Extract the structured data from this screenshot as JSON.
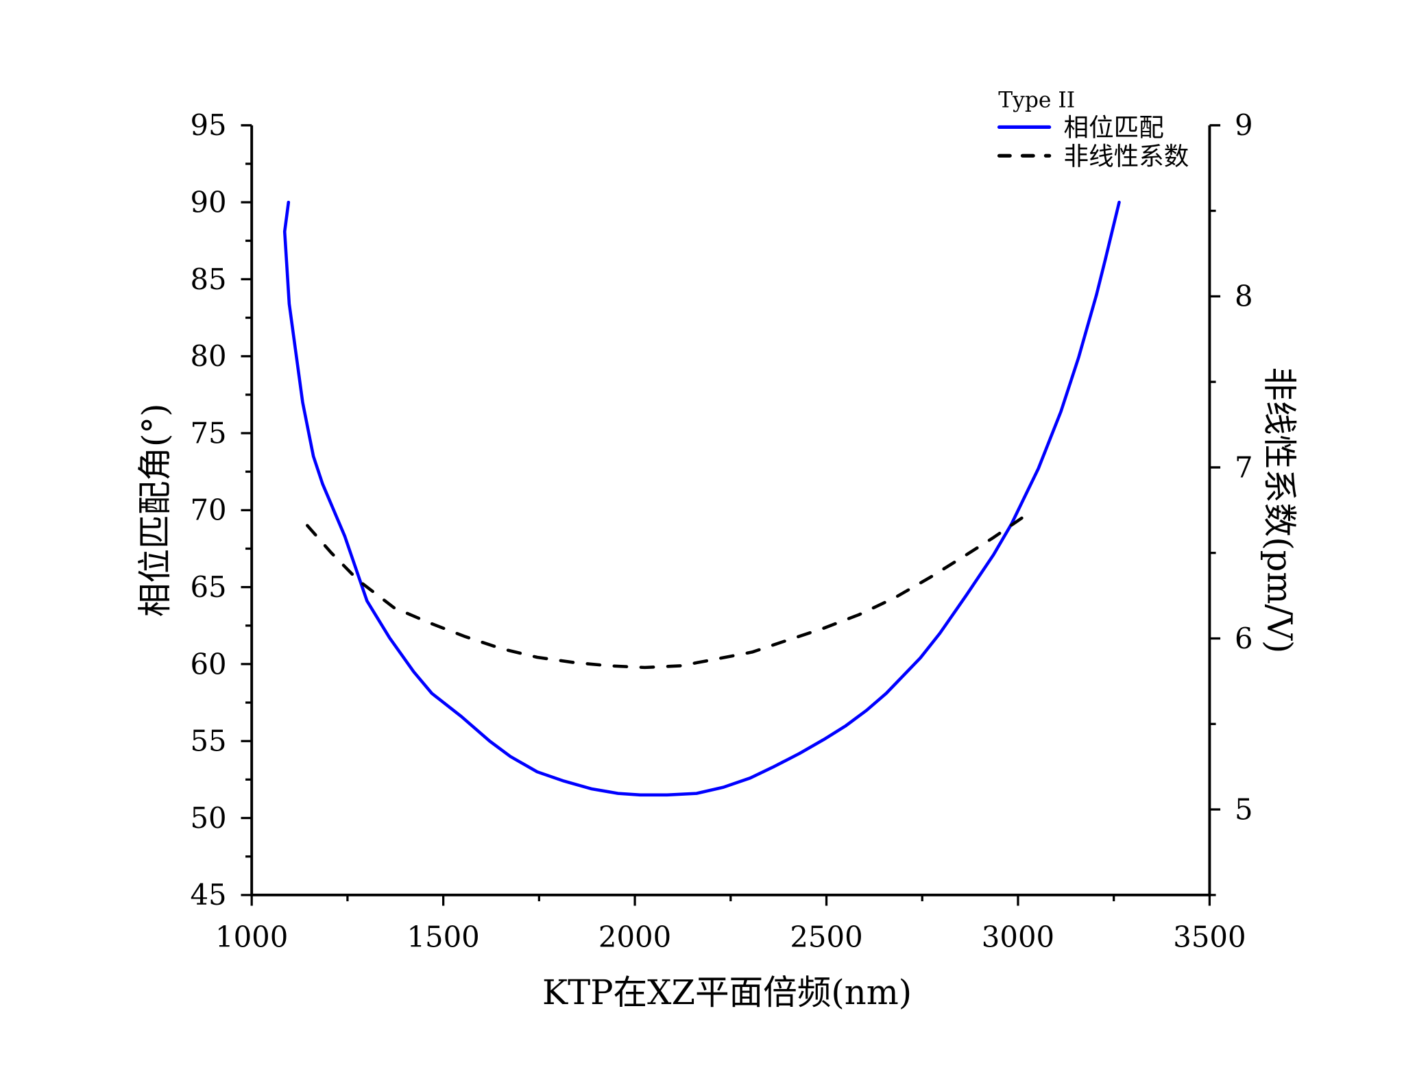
{
  "chart_data": {
    "type": "line",
    "title": "",
    "xlabel": "KTP在XZ平面倍频(nm)",
    "ylabel": "相位匹配角(°)",
    "y2label": "非线性系数(pm/V)",
    "xlim": [
      1000,
      3500
    ],
    "ylim": [
      45,
      95
    ],
    "y2lim": [
      4.5,
      9
    ],
    "xticks": [
      "1000",
      "1500",
      "2000",
      "2500",
      "3000",
      "3500"
    ],
    "yticks": [
      "45",
      "50",
      "55",
      "60",
      "65",
      "70",
      "75",
      "80",
      "85",
      "90",
      "95"
    ],
    "y2ticks": [
      "5",
      "6",
      "7",
      "8",
      "9"
    ],
    "grid": false,
    "legend": {
      "title": "Type II",
      "placement": "top-right"
    },
    "series": [
      {
        "name": "相位匹配",
        "axis": "left",
        "color": "#0000ff",
        "style": "solid",
        "x": [
          1096,
          1086,
          1098,
          1133,
          1161,
          1185,
          1243,
          1301,
          1360,
          1423,
          1470,
          1547,
          1621,
          1675,
          1745,
          1815,
          1886,
          1956,
          2014,
          2084,
          2161,
          2231,
          2301,
          2360,
          2430,
          2493,
          2551,
          2605,
          2656,
          2745,
          2796,
          2866,
          2936,
          2983,
          3053,
          3112,
          3158,
          3205,
          3228,
          3264
        ],
        "y": [
          90,
          88.1,
          83.4,
          77,
          73.5,
          71.7,
          68.3,
          64.1,
          61.7,
          59.5,
          58.1,
          56.6,
          55,
          54,
          53,
          52.4,
          51.9,
          51.6,
          51.5,
          51.5,
          51.6,
          52,
          52.6,
          53.3,
          54.2,
          55.1,
          56,
          57,
          58.1,
          60.4,
          62,
          64.5,
          67.1,
          69.1,
          72.7,
          76.4,
          79.9,
          84,
          86.3,
          90
        ]
      },
      {
        "name": "非线性系数",
        "axis": "right",
        "color": "#000000",
        "style": "dashed",
        "x": [
          1145,
          1208,
          1278,
          1371,
          1465,
          1558,
          1652,
          1745,
          1839,
          1932,
          2026,
          2119,
          2213,
          2306,
          2399,
          2493,
          2586,
          2680,
          2773,
          2866,
          2936,
          3014
        ],
        "y": [
          6.66,
          6.5,
          6.34,
          6.18,
          6.09,
          6.01,
          5.94,
          5.89,
          5.86,
          5.84,
          5.83,
          5.84,
          5.88,
          5.92,
          5.99,
          6.06,
          6.14,
          6.24,
          6.36,
          6.49,
          6.59,
          6.71
        ]
      }
    ]
  }
}
